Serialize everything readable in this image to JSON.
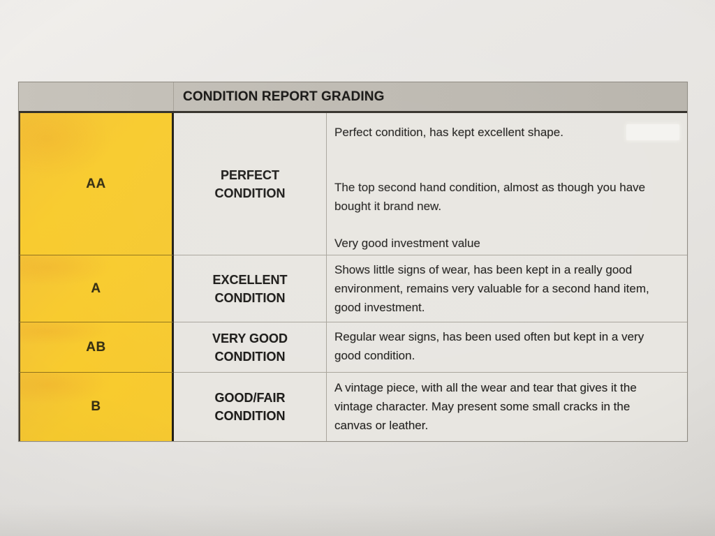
{
  "document": {
    "header": {
      "title": "CONDITION REPORT GRADING"
    },
    "rows": [
      {
        "grade": "AA",
        "condition_line1": "PERFECT",
        "condition_line2": "CONDITION",
        "description": [
          "Perfect condition, has kept excellent shape.",
          "The top second hand condition, almost as though you have bought it brand new.",
          "Very good investment value"
        ]
      },
      {
        "grade": "A",
        "condition_line1": "EXCELLENT",
        "condition_line2": "CONDITION",
        "description": [
          "Shows little signs of wear, has been kept in a really good environment, remains very valuable for a second hand item, good investment."
        ]
      },
      {
        "grade": "AB",
        "condition_line1": "VERY GOOD",
        "condition_line2": "CONDITION",
        "description": [
          "Regular wear signs, has been used often but kept in a very good condition."
        ]
      },
      {
        "grade": "B",
        "condition_line1": "GOOD/FAIR",
        "condition_line2": "CONDITION",
        "description": [
          "A vintage piece, with all the wear and tear that gives it the vintage character. May present some small cracks in the canvas or leather."
        ]
      }
    ]
  },
  "colors": {
    "grade_column_yellow": "#F7CA30",
    "header_bar_gray": "#BFBBB3",
    "cell_background": "#E8E6E1",
    "page_background": "#E8E6E3",
    "text": "#232220",
    "dark_border": "#33302A",
    "light_border": "#A9A59C"
  }
}
